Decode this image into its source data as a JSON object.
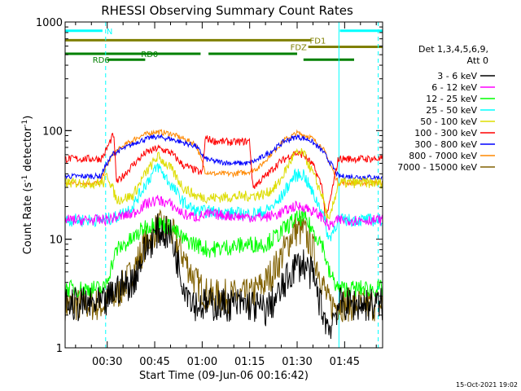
{
  "chart_data": {
    "type": "line",
    "title": "RHESSI Observing Summary Count Rates",
    "xlabel": "Start Time (09-Jun-06 00:16:42)",
    "ylabel_parts": [
      "Count Rate (s",
      "-1",
      " detector",
      "-1",
      ")"
    ],
    "y_scale": "log",
    "ylim": [
      1,
      1000
    ],
    "xlim_minutes": [
      16.7,
      117.0
    ],
    "x_ticks": [
      {
        "label": "00:30",
        "minute": 30
      },
      {
        "label": "00:45",
        "minute": 45
      },
      {
        "label": "01:00",
        "minute": 60
      },
      {
        "label": "01:15",
        "minute": 75
      },
      {
        "label": "01:30",
        "minute": 90
      },
      {
        "label": "01:45",
        "minute": 105
      }
    ],
    "y_ticks": [
      {
        "label": "1",
        "value": 1
      },
      {
        "label": "10",
        "value": 10
      },
      {
        "label": "100",
        "value": 100
      },
      {
        "label": "1000",
        "value": 1000
      }
    ],
    "legend_header": [
      "Det 1,3,4,5,6,9,",
      "Att 0"
    ],
    "legend_placement": "right",
    "series": [
      {
        "name": "3 - 6 keV",
        "color": "#000000",
        "points": [
          [
            17,
            2.5
          ],
          [
            29,
            2.5
          ],
          [
            33,
            3.5
          ],
          [
            38,
            4
          ],
          [
            42,
            8
          ],
          [
            46,
            12
          ],
          [
            50,
            11
          ],
          [
            54,
            4
          ],
          [
            58,
            2.5
          ],
          [
            62,
            2.5
          ],
          [
            75,
            2.5
          ],
          [
            80,
            2.2
          ],
          [
            84,
            3
          ],
          [
            89,
            5.5
          ],
          [
            92,
            6
          ],
          [
            95,
            4.5
          ],
          [
            98,
            2.2
          ],
          [
            100,
            1.5
          ],
          [
            103,
            2.5
          ],
          [
            116,
            2.5
          ]
        ]
      },
      {
        "name": "6 - 12 keV",
        "color": "#ff00ff",
        "points": [
          [
            17,
            15
          ],
          [
            29,
            15
          ],
          [
            33,
            16
          ],
          [
            38,
            17
          ],
          [
            42,
            21
          ],
          [
            46,
            23
          ],
          [
            50,
            21
          ],
          [
            54,
            17
          ],
          [
            58,
            16
          ],
          [
            62,
            17
          ],
          [
            75,
            16
          ],
          [
            80,
            16
          ],
          [
            84,
            17
          ],
          [
            89,
            20
          ],
          [
            92,
            20
          ],
          [
            95,
            18
          ],
          [
            98,
            16
          ],
          [
            100,
            13
          ],
          [
            103,
            15
          ],
          [
            116,
            15
          ]
        ]
      },
      {
        "name": "12 - 25 keV",
        "color": "#00ff00",
        "points": [
          [
            17,
            3.5
          ],
          [
            29,
            3.5
          ],
          [
            33,
            8
          ],
          [
            38,
            10
          ],
          [
            42,
            13
          ],
          [
            46,
            14
          ],
          [
            50,
            13
          ],
          [
            54,
            10
          ],
          [
            58,
            9
          ],
          [
            62,
            8
          ],
          [
            75,
            9
          ],
          [
            80,
            9
          ],
          [
            84,
            11
          ],
          [
            89,
            15
          ],
          [
            92,
            16
          ],
          [
            95,
            12
          ],
          [
            98,
            9
          ],
          [
            100,
            5
          ],
          [
            103,
            3.5
          ],
          [
            116,
            3.5
          ]
        ]
      },
      {
        "name": "25 - 50 keV",
        "color": "#00ffff",
        "points": [
          [
            17,
            15
          ],
          [
            29,
            15
          ],
          [
            33,
            16
          ],
          [
            38,
            20
          ],
          [
            42,
            32
          ],
          [
            46,
            47
          ],
          [
            50,
            32
          ],
          [
            54,
            22
          ],
          [
            58,
            18
          ],
          [
            62,
            18
          ],
          [
            75,
            17
          ],
          [
            80,
            18
          ],
          [
            84,
            22
          ],
          [
            89,
            38
          ],
          [
            92,
            40
          ],
          [
            95,
            26
          ],
          [
            98,
            18
          ],
          [
            100,
            10
          ],
          [
            103,
            15
          ],
          [
            116,
            15
          ]
        ]
      },
      {
        "name": "50 - 100 keV",
        "color": "#dddd00",
        "points": [
          [
            17,
            33
          ],
          [
            29,
            33
          ],
          [
            30,
            40
          ],
          [
            33,
            23
          ],
          [
            38,
            25
          ],
          [
            42,
            40
          ],
          [
            46,
            58
          ],
          [
            50,
            45
          ],
          [
            54,
            30
          ],
          [
            58,
            25
          ],
          [
            62,
            24
          ],
          [
            75,
            25
          ],
          [
            80,
            26
          ],
          [
            84,
            32
          ],
          [
            89,
            60
          ],
          [
            92,
            62
          ],
          [
            95,
            40
          ],
          [
            98,
            25
          ],
          [
            100,
            14
          ],
          [
            103,
            33
          ],
          [
            116,
            33
          ]
        ]
      },
      {
        "name": "100 - 300 keV",
        "color": "#ff0000",
        "points": [
          [
            17,
            55
          ],
          [
            28,
            55
          ],
          [
            29,
            60
          ],
          [
            32,
            93
          ],
          [
            33,
            33
          ],
          [
            38,
            48
          ],
          [
            42,
            62
          ],
          [
            46,
            69
          ],
          [
            50,
            63
          ],
          [
            54,
            48
          ],
          [
            58,
            43
          ],
          [
            60,
            40
          ],
          [
            61,
            85
          ],
          [
            64,
            80
          ],
          [
            70,
            78
          ],
          [
            75,
            80
          ],
          [
            76,
            30
          ],
          [
            80,
            38
          ],
          [
            84,
            50
          ],
          [
            89,
            62
          ],
          [
            92,
            60
          ],
          [
            95,
            48
          ],
          [
            98,
            30
          ],
          [
            99,
            14
          ],
          [
            103,
            55
          ],
          [
            116,
            55
          ]
        ]
      },
      {
        "name": "300 - 800 keV",
        "color": "#0000ff",
        "points": [
          [
            17,
            38
          ],
          [
            28,
            38
          ],
          [
            29,
            45
          ],
          [
            32,
            62
          ],
          [
            36,
            70
          ],
          [
            40,
            80
          ],
          [
            45,
            88
          ],
          [
            50,
            84
          ],
          [
            55,
            76
          ],
          [
            58,
            72
          ],
          [
            61,
            55
          ],
          [
            64,
            52
          ],
          [
            70,
            50
          ],
          [
            75,
            50
          ],
          [
            78,
            55
          ],
          [
            82,
            65
          ],
          [
            86,
            80
          ],
          [
            90,
            88
          ],
          [
            94,
            82
          ],
          [
            98,
            65
          ],
          [
            101,
            48
          ],
          [
            103,
            38
          ],
          [
            116,
            37
          ]
        ]
      },
      {
        "name": "800 - 7000 keV",
        "color": "#ff8800",
        "points": [
          [
            17,
            33
          ],
          [
            28,
            33
          ],
          [
            29,
            42
          ],
          [
            32,
            62
          ],
          [
            36,
            75
          ],
          [
            40,
            88
          ],
          [
            45,
            98
          ],
          [
            50,
            94
          ],
          [
            55,
            82
          ],
          [
            58,
            75
          ],
          [
            61,
            42
          ],
          [
            64,
            40
          ],
          [
            70,
            40
          ],
          [
            75,
            42
          ],
          [
            78,
            46
          ],
          [
            82,
            62
          ],
          [
            86,
            82
          ],
          [
            90,
            95
          ],
          [
            94,
            88
          ],
          [
            98,
            70
          ],
          [
            101,
            45
          ],
          [
            103,
            33
          ],
          [
            116,
            33
          ]
        ]
      },
      {
        "name": "7000 - 15000 keV",
        "color": "#806000",
        "points": [
          [
            17,
            2.5
          ],
          [
            29,
            2.5
          ],
          [
            33,
            3
          ],
          [
            38,
            5
          ],
          [
            42,
            9
          ],
          [
            46,
            13
          ],
          [
            50,
            12
          ],
          [
            54,
            7
          ],
          [
            58,
            4
          ],
          [
            62,
            3
          ],
          [
            75,
            3
          ],
          [
            80,
            4
          ],
          [
            84,
            6
          ],
          [
            89,
            12
          ],
          [
            92,
            12
          ],
          [
            95,
            8
          ],
          [
            98,
            4
          ],
          [
            100,
            2.5
          ],
          [
            103,
            2.5
          ],
          [
            116,
            2.5
          ]
        ]
      }
    ],
    "flag_bars": [
      {
        "label": "N",
        "color": "#00ffff",
        "level": 830,
        "segments": [
          [
            16.7,
            28.5
          ],
          [
            103.5,
            117
          ]
        ]
      },
      {
        "label": "FD1",
        "color": "#808000",
        "level": 680,
        "segments": [
          [
            16.7,
            94.5
          ]
        ]
      },
      {
        "label": "FDZ",
        "color": "#808000",
        "level": 590,
        "segments": [
          [
            93.5,
            117
          ]
        ]
      },
      {
        "label": "RD0",
        "color": "#008000",
        "level": 510,
        "segments": [
          [
            16.7,
            59.5
          ],
          [
            62,
            90
          ]
        ]
      },
      {
        "label": "RD6",
        "color": "#008000",
        "level": 450,
        "segments": [
          [
            30,
            42
          ],
          [
            92,
            108
          ]
        ]
      }
    ],
    "vlines": [
      {
        "minute": 16.7,
        "color": "#00ffff",
        "style": "solid"
      },
      {
        "minute": 29.5,
        "color": "#00ffff",
        "style": "dashed"
      },
      {
        "minute": 103.2,
        "color": "#00ffff",
        "style": "solid"
      },
      {
        "minute": 115.6,
        "color": "#00ffff",
        "style": "dashed"
      }
    ],
    "footer_timestamp": "15-Oct-2021 19:02"
  }
}
